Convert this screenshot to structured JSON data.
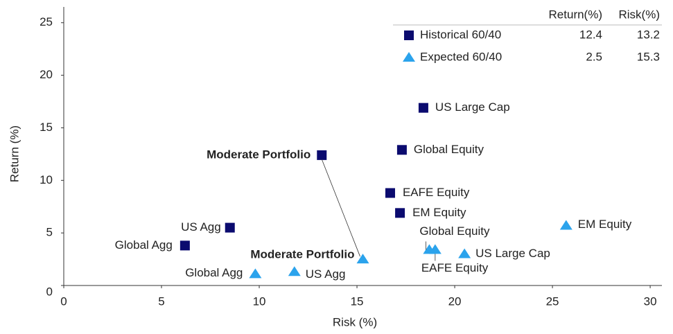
{
  "chart_data": {
    "type": "scatter",
    "xlabel": "Risk (%)",
    "ylabel": "Return (%)",
    "xlim": [
      0,
      30.6
    ],
    "ylim": [
      0,
      26.5
    ],
    "xticks": [
      0,
      5,
      10,
      15,
      20,
      25,
      30
    ],
    "yticks": [
      0,
      5,
      10,
      15,
      20,
      25
    ],
    "series": [
      {
        "name": "Historical 60/40",
        "color": "#0b0b6f",
        "marker": "square",
        "labels": [
          "Moderate Portfolio",
          "US Large Cap",
          "Global Equity",
          "EAFE Equity",
          "EM Equity",
          "US Agg",
          "Global Agg"
        ],
        "x": [
          13.2,
          18.4,
          17.3,
          16.7,
          17.2,
          8.5,
          6.2
        ],
        "values": [
          12.4,
          16.9,
          12.9,
          8.8,
          6.9,
          5.5,
          3.8
        ]
      },
      {
        "name": "Expected 60/40",
        "color": "#2ba3ec",
        "marker": "triangle",
        "labels": [
          "Moderate Portfolio",
          "EM Equity",
          "US Large Cap",
          "Global Equity",
          "EAFE Equity",
          "US Agg",
          "Global Agg"
        ],
        "x": [
          15.3,
          25.7,
          20.5,
          18.7,
          19.0,
          11.8,
          9.8
        ],
        "values": [
          2.5,
          5.7,
          3.0,
          3.4,
          3.4,
          1.3,
          1.1
        ]
      }
    ],
    "legend_table": {
      "columns": [
        "Return(%)",
        "Risk(%)"
      ],
      "rows": [
        [
          12.4,
          13.2
        ],
        [
          2.5,
          15.3
        ]
      ]
    }
  }
}
